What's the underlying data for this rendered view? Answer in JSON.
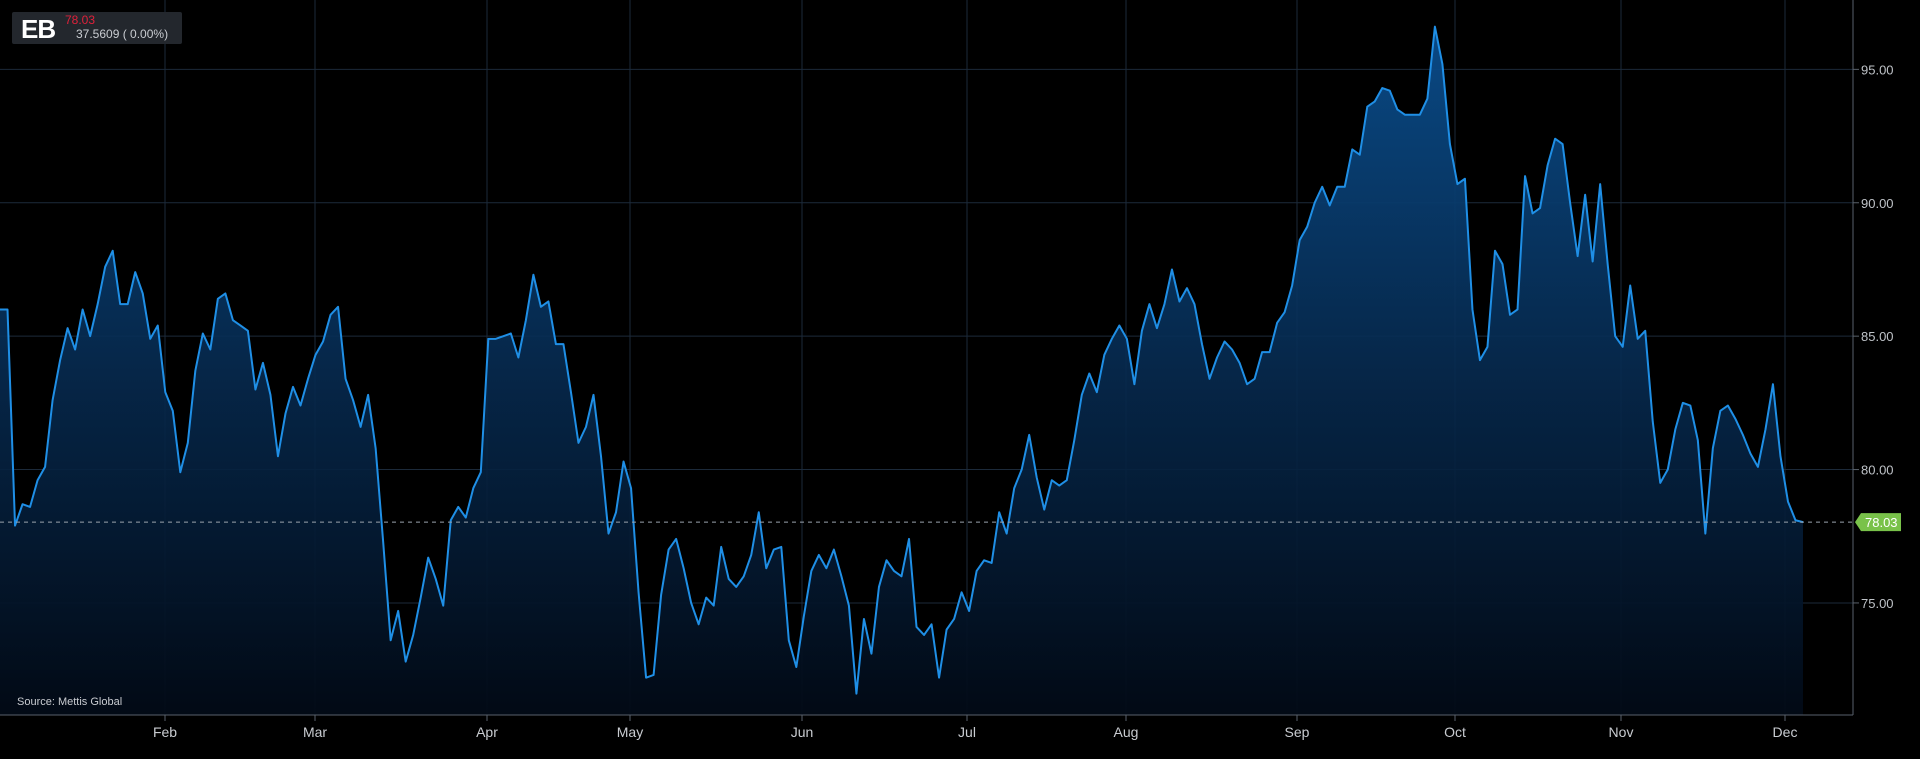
{
  "badge": {
    "symbol": "EB",
    "last_price": "78.03",
    "change_line": "37.5609 ( 0.00%)"
  },
  "source": "Source: Mettis Global",
  "colors": {
    "background": "#000000",
    "line": "#1f8fe6",
    "area_top": "#0a4a86",
    "grid": "#1c2a3a",
    "price_tag": "#79c24a",
    "last_price_text": "#e0203a"
  },
  "chart_data": {
    "type": "area",
    "title": "",
    "xlabel": "",
    "ylabel": "",
    "grid": true,
    "x_tick_labels": [
      "Feb",
      "Mar",
      "Apr",
      "May",
      "Jun",
      "Jul",
      "Aug",
      "Sep",
      "Oct",
      "Nov",
      "Dec"
    ],
    "y_tick_labels": [
      "75.00",
      "80.00",
      "85.00",
      "90.00",
      "95.00"
    ],
    "ylim": [
      70.8,
      97.6
    ],
    "last_value": 78.03,
    "last_value_label": "78.03",
    "series": [
      {
        "values": [
          86.0,
          86.0,
          77.9,
          78.7,
          78.6,
          79.6,
          80.1,
          82.6,
          84.1,
          85.3,
          84.5,
          86.0,
          85.0,
          86.2,
          87.6,
          88.2,
          86.2,
          86.2,
          87.4,
          86.6,
          84.9,
          85.4,
          82.9,
          82.2,
          79.9,
          81.0,
          83.7,
          85.1,
          84.5,
          86.4,
          86.6,
          85.6,
          85.4,
          85.2,
          83.0,
          84.0,
          82.8,
          80.5,
          82.1,
          83.1,
          82.4,
          83.4,
          84.3,
          84.8,
          85.8,
          86.1,
          83.4,
          82.6,
          81.6,
          82.8,
          80.8,
          77.3,
          73.6,
          74.7,
          72.8,
          73.8,
          75.2,
          76.7,
          75.9,
          74.9,
          78.1,
          78.6,
          78.2,
          79.3,
          79.9,
          84.9,
          84.9,
          85.0,
          85.1,
          84.2,
          85.6,
          87.3,
          86.1,
          86.3,
          84.7,
          84.7,
          82.9,
          81.0,
          81.6,
          82.8,
          80.5,
          77.6,
          78.4,
          80.3,
          79.3,
          75.4,
          72.2,
          72.3,
          75.3,
          77.0,
          77.4,
          76.3,
          75.0,
          74.2,
          75.2,
          74.9,
          77.1,
          75.9,
          75.6,
          76.0,
          76.8,
          78.4,
          76.3,
          77.0,
          77.1,
          73.6,
          72.6,
          74.5,
          76.2,
          76.8,
          76.3,
          77.0,
          76.0,
          74.9,
          71.6,
          74.4,
          73.1,
          75.6,
          76.6,
          76.2,
          76.0,
          77.4,
          74.1,
          73.8,
          74.2,
          72.2,
          74.0,
          74.4,
          75.4,
          74.7,
          76.2,
          76.6,
          76.5,
          78.4,
          77.6,
          79.3,
          80.0,
          81.3,
          79.7,
          78.5,
          79.6,
          79.4,
          79.6,
          81.1,
          82.8,
          83.6,
          82.9,
          84.3,
          84.9,
          85.4,
          84.9,
          83.2,
          85.2,
          86.2,
          85.3,
          86.2,
          87.5,
          86.3,
          86.8,
          86.2,
          84.7,
          83.4,
          84.2,
          84.8,
          84.5,
          84.0,
          83.2,
          83.4,
          84.4,
          84.4,
          85.5,
          85.9,
          86.9,
          88.6,
          89.1,
          90.0,
          90.6,
          89.9,
          90.6,
          90.6,
          92.0,
          91.8,
          93.6,
          93.8,
          94.3,
          94.2,
          93.5,
          93.3,
          93.3,
          93.3,
          93.9,
          96.6,
          95.2,
          92.2,
          90.7,
          90.9,
          86.0,
          84.1,
          84.6,
          88.2,
          87.7,
          85.8,
          86.0,
          91.0,
          89.6,
          89.8,
          91.4,
          92.4,
          92.2,
          90.0,
          88.0,
          90.3,
          87.8,
          90.7,
          87.7,
          85.0,
          84.6,
          86.9,
          84.9,
          85.2,
          81.8,
          79.5,
          80.0,
          81.5,
          82.5,
          82.4,
          81.1,
          77.6,
          80.8,
          82.2,
          82.4,
          81.9,
          81.3,
          80.6,
          80.1,
          81.5,
          83.2,
          80.5,
          78.8,
          78.1,
          78.03
        ]
      }
    ]
  }
}
